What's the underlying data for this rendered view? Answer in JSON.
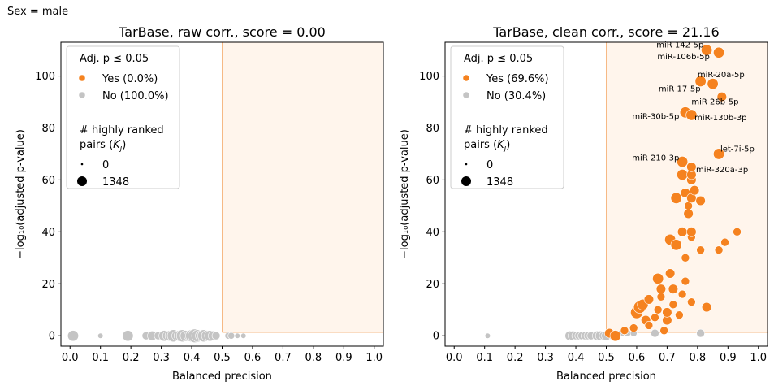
{
  "sup_title": "Sex = male",
  "colors": {
    "yes": "#f5821f",
    "no": "#c4c4c4",
    "region_fill": "#fff5ec",
    "region_edge": "#f6b985",
    "legend_edge": "#cccccc"
  },
  "chart_data": [
    {
      "type": "scatter",
      "title": "TarBase, raw corr., score = 0.00",
      "xlabel": "Balanced precision",
      "ylabel": "−log₁₀(adjusted p-value)",
      "xlim": [
        -0.03,
        1.03
      ],
      "ylim": [
        -4,
        113
      ],
      "xticks": [
        "0.0",
        "0.1",
        "0.2",
        "0.3",
        "0.4",
        "0.5",
        "0.6",
        "0.7",
        "0.8",
        "0.9",
        "1.0"
      ],
      "yticks": [
        "0",
        "20",
        "40",
        "60",
        "80",
        "100"
      ],
      "threshold": {
        "x": 0.5,
        "y": 1.3
      },
      "legend": {
        "title": "Adj. p ≤ 0.05",
        "items": [
          "Yes (0.0%)",
          "No (100.0%)"
        ],
        "size_title_line1": "# highly ranked",
        "size_title_line2": "pairs (K",
        "size_title_sub": "j",
        "size_title_end": ")",
        "size_items": [
          "0",
          "1348"
        ]
      },
      "points": [
        {
          "x": 0.01,
          "y": 0,
          "s": 6
        },
        {
          "x": 0.1,
          "y": 0,
          "s": 2
        },
        {
          "x": 0.19,
          "y": 0,
          "s": 6
        },
        {
          "x": 0.25,
          "y": 0,
          "s": 4
        },
        {
          "x": 0.27,
          "y": 0,
          "s": 5
        },
        {
          "x": 0.29,
          "y": 0,
          "s": 4
        },
        {
          "x": 0.31,
          "y": 0,
          "s": 6
        },
        {
          "x": 0.32,
          "y": 0,
          "s": 5
        },
        {
          "x": 0.33,
          "y": 0,
          "s": 6
        },
        {
          "x": 0.34,
          "y": 0,
          "s": 7
        },
        {
          "x": 0.35,
          "y": 0,
          "s": 5
        },
        {
          "x": 0.36,
          "y": 0,
          "s": 6
        },
        {
          "x": 0.37,
          "y": 0,
          "s": 7
        },
        {
          "x": 0.38,
          "y": 0,
          "s": 6
        },
        {
          "x": 0.39,
          "y": 0,
          "s": 5
        },
        {
          "x": 0.4,
          "y": 0,
          "s": 7
        },
        {
          "x": 0.41,
          "y": 0,
          "s": 8
        },
        {
          "x": 0.42,
          "y": 0,
          "s": 7
        },
        {
          "x": 0.43,
          "y": 0,
          "s": 6
        },
        {
          "x": 0.44,
          "y": 0,
          "s": 7
        },
        {
          "x": 0.45,
          "y": 0,
          "s": 6
        },
        {
          "x": 0.46,
          "y": 0,
          "s": 6
        },
        {
          "x": 0.47,
          "y": 0,
          "s": 5
        },
        {
          "x": 0.48,
          "y": 0,
          "s": 4
        },
        {
          "x": 0.52,
          "y": 0,
          "s": 3
        },
        {
          "x": 0.53,
          "y": 0,
          "s": 3
        },
        {
          "x": 0.55,
          "y": 0,
          "s": 2
        },
        {
          "x": 0.57,
          "y": 0,
          "s": 2
        }
      ]
    },
    {
      "type": "scatter",
      "title": "TarBase, clean corr., score = 21.16",
      "xlabel": "Balanced precision",
      "ylabel": "−log₁₀(adjusted p-value)",
      "xlim": [
        -0.03,
        1.03
      ],
      "ylim": [
        -4,
        113
      ],
      "xticks": [
        "0.0",
        "0.1",
        "0.2",
        "0.3",
        "0.4",
        "0.5",
        "0.6",
        "0.7",
        "0.8",
        "0.9",
        "1.0"
      ],
      "yticks": [
        "0",
        "20",
        "40",
        "60",
        "80",
        "100"
      ],
      "threshold": {
        "x": 0.5,
        "y": 1.3
      },
      "legend": {
        "title": "Adj. p ≤ 0.05",
        "items": [
          "Yes (69.6%)",
          "No (30.4%)"
        ],
        "size_title_line1": "# highly ranked",
        "size_title_line2": "pairs (K",
        "size_title_sub": "j",
        "size_title_end": ")",
        "size_items": [
          "0",
          "1348"
        ]
      },
      "annotations": [
        {
          "text": "miR-142-5p",
          "x": 0.82,
          "y": 111,
          "anchor": "end"
        },
        {
          "text": "miR-106b-5p",
          "x": 0.84,
          "y": 106.5,
          "anchor": "end"
        },
        {
          "text": "miR-20a-5p",
          "x": 0.8,
          "y": 99.5,
          "anchor": "start"
        },
        {
          "text": "miR-17-5p",
          "x": 0.81,
          "y": 94,
          "anchor": "end"
        },
        {
          "text": "miR-26b-5p",
          "x": 0.78,
          "y": 89,
          "anchor": "start"
        },
        {
          "text": "miR-30b-5p",
          "x": 0.74,
          "y": 83.5,
          "anchor": "end"
        },
        {
          "text": "miR-130b-3p",
          "x": 0.79,
          "y": 83,
          "anchor": "start"
        },
        {
          "text": "let-7i-5p",
          "x": 0.875,
          "y": 71,
          "anchor": "start"
        },
        {
          "text": "miR-210-3p",
          "x": 0.74,
          "y": 67.5,
          "anchor": "end"
        },
        {
          "text": "miR-320a-3p",
          "x": 0.795,
          "y": 63,
          "anchor": "start"
        }
      ],
      "points": [
        {
          "x": 0.11,
          "y": 0,
          "s": 2,
          "sig": false
        },
        {
          "x": 0.38,
          "y": 0,
          "s": 5,
          "sig": false
        },
        {
          "x": 0.39,
          "y": 0,
          "s": 5,
          "sig": false
        },
        {
          "x": 0.4,
          "y": 0,
          "s": 4,
          "sig": false
        },
        {
          "x": 0.41,
          "y": 0,
          "s": 4,
          "sig": false
        },
        {
          "x": 0.42,
          "y": 0,
          "s": 4,
          "sig": false
        },
        {
          "x": 0.43,
          "y": 0,
          "s": 4,
          "sig": false
        },
        {
          "x": 0.44,
          "y": 0,
          "s": 4,
          "sig": false
        },
        {
          "x": 0.45,
          "y": 0,
          "s": 4,
          "sig": false
        },
        {
          "x": 0.47,
          "y": 0,
          "s": 5,
          "sig": false
        },
        {
          "x": 0.48,
          "y": 0,
          "s": 5,
          "sig": false
        },
        {
          "x": 0.49,
          "y": 0,
          "s": 4,
          "sig": false
        },
        {
          "x": 0.5,
          "y": 0,
          "s": 5,
          "sig": false
        },
        {
          "x": 0.52,
          "y": 0,
          "s": 4,
          "sig": false
        },
        {
          "x": 0.55,
          "y": 1,
          "s": 3,
          "sig": false
        },
        {
          "x": 0.57,
          "y": 1,
          "s": 3,
          "sig": false
        },
        {
          "x": 0.59,
          "y": 1,
          "s": 3,
          "sig": false
        },
        {
          "x": 0.66,
          "y": 1,
          "s": 4,
          "sig": false
        },
        {
          "x": 0.81,
          "y": 1,
          "s": 4,
          "sig": false
        },
        {
          "x": 0.51,
          "y": 1,
          "s": 5,
          "sig": true
        },
        {
          "x": 0.53,
          "y": 0,
          "s": 6,
          "sig": true
        },
        {
          "x": 0.56,
          "y": 2,
          "s": 4,
          "sig": true
        },
        {
          "x": 0.59,
          "y": 3,
          "s": 4,
          "sig": true
        },
        {
          "x": 0.6,
          "y": 9,
          "s": 7,
          "sig": true
        },
        {
          "x": 0.61,
          "y": 11,
          "s": 7,
          "sig": true
        },
        {
          "x": 0.62,
          "y": 12,
          "s": 6,
          "sig": true
        },
        {
          "x": 0.63,
          "y": 6,
          "s": 5,
          "sig": true
        },
        {
          "x": 0.64,
          "y": 4,
          "s": 4,
          "sig": true
        },
        {
          "x": 0.64,
          "y": 14,
          "s": 5,
          "sig": true
        },
        {
          "x": 0.66,
          "y": 7,
          "s": 4,
          "sig": true
        },
        {
          "x": 0.67,
          "y": 10,
          "s": 4,
          "sig": true
        },
        {
          "x": 0.67,
          "y": 22,
          "s": 6,
          "sig": true
        },
        {
          "x": 0.68,
          "y": 18,
          "s": 5,
          "sig": true
        },
        {
          "x": 0.68,
          "y": 15,
          "s": 4,
          "sig": true
        },
        {
          "x": 0.69,
          "y": 2,
          "s": 4,
          "sig": true
        },
        {
          "x": 0.7,
          "y": 6,
          "s": 5,
          "sig": true
        },
        {
          "x": 0.7,
          "y": 9,
          "s": 5,
          "sig": true
        },
        {
          "x": 0.71,
          "y": 24,
          "s": 5,
          "sig": true
        },
        {
          "x": 0.71,
          "y": 37,
          "s": 6,
          "sig": true
        },
        {
          "x": 0.72,
          "y": 12,
          "s": 4,
          "sig": true
        },
        {
          "x": 0.72,
          "y": 18,
          "s": 5,
          "sig": true
        },
        {
          "x": 0.73,
          "y": 35,
          "s": 6,
          "sig": true
        },
        {
          "x": 0.73,
          "y": 53,
          "s": 6,
          "sig": true
        },
        {
          "x": 0.74,
          "y": 8,
          "s": 4,
          "sig": true
        },
        {
          "x": 0.75,
          "y": 16,
          "s": 4,
          "sig": true
        },
        {
          "x": 0.75,
          "y": 40,
          "s": 5,
          "sig": true
        },
        {
          "x": 0.75,
          "y": 62,
          "s": 6,
          "sig": true
        },
        {
          "x": 0.75,
          "y": 67,
          "s": 6,
          "sig": true
        },
        {
          "x": 0.76,
          "y": 21,
          "s": 4,
          "sig": true
        },
        {
          "x": 0.76,
          "y": 30,
          "s": 4,
          "sig": true
        },
        {
          "x": 0.76,
          "y": 55,
          "s": 5,
          "sig": true
        },
        {
          "x": 0.76,
          "y": 86,
          "s": 6,
          "sig": true
        },
        {
          "x": 0.77,
          "y": 47,
          "s": 5,
          "sig": true
        },
        {
          "x": 0.77,
          "y": 50,
          "s": 4,
          "sig": true
        },
        {
          "x": 0.78,
          "y": 13,
          "s": 4,
          "sig": true
        },
        {
          "x": 0.78,
          "y": 38,
          "s": 4,
          "sig": true
        },
        {
          "x": 0.78,
          "y": 40,
          "s": 5,
          "sig": true
        },
        {
          "x": 0.78,
          "y": 53,
          "s": 5,
          "sig": true
        },
        {
          "x": 0.78,
          "y": 60,
          "s": 5,
          "sig": true
        },
        {
          "x": 0.78,
          "y": 62,
          "s": 5,
          "sig": true
        },
        {
          "x": 0.78,
          "y": 65,
          "s": 5,
          "sig": true
        },
        {
          "x": 0.78,
          "y": 85,
          "s": 6,
          "sig": true
        },
        {
          "x": 0.79,
          "y": 56,
          "s": 5,
          "sig": true
        },
        {
          "x": 0.81,
          "y": 33,
          "s": 4,
          "sig": true
        },
        {
          "x": 0.81,
          "y": 52,
          "s": 5,
          "sig": true
        },
        {
          "x": 0.81,
          "y": 98,
          "s": 6,
          "sig": true
        },
        {
          "x": 0.83,
          "y": 11,
          "s": 5,
          "sig": true
        },
        {
          "x": 0.83,
          "y": 110,
          "s": 6,
          "sig": true
        },
        {
          "x": 0.85,
          "y": 97,
          "s": 6,
          "sig": true
        },
        {
          "x": 0.87,
          "y": 33,
          "s": 4,
          "sig": true
        },
        {
          "x": 0.87,
          "y": 70,
          "s": 6,
          "sig": true
        },
        {
          "x": 0.87,
          "y": 109,
          "s": 6,
          "sig": true
        },
        {
          "x": 0.88,
          "y": 92,
          "s": 5,
          "sig": true
        },
        {
          "x": 0.89,
          "y": 36,
          "s": 4,
          "sig": true
        },
        {
          "x": 0.93,
          "y": 40,
          "s": 4,
          "sig": true
        }
      ]
    }
  ]
}
